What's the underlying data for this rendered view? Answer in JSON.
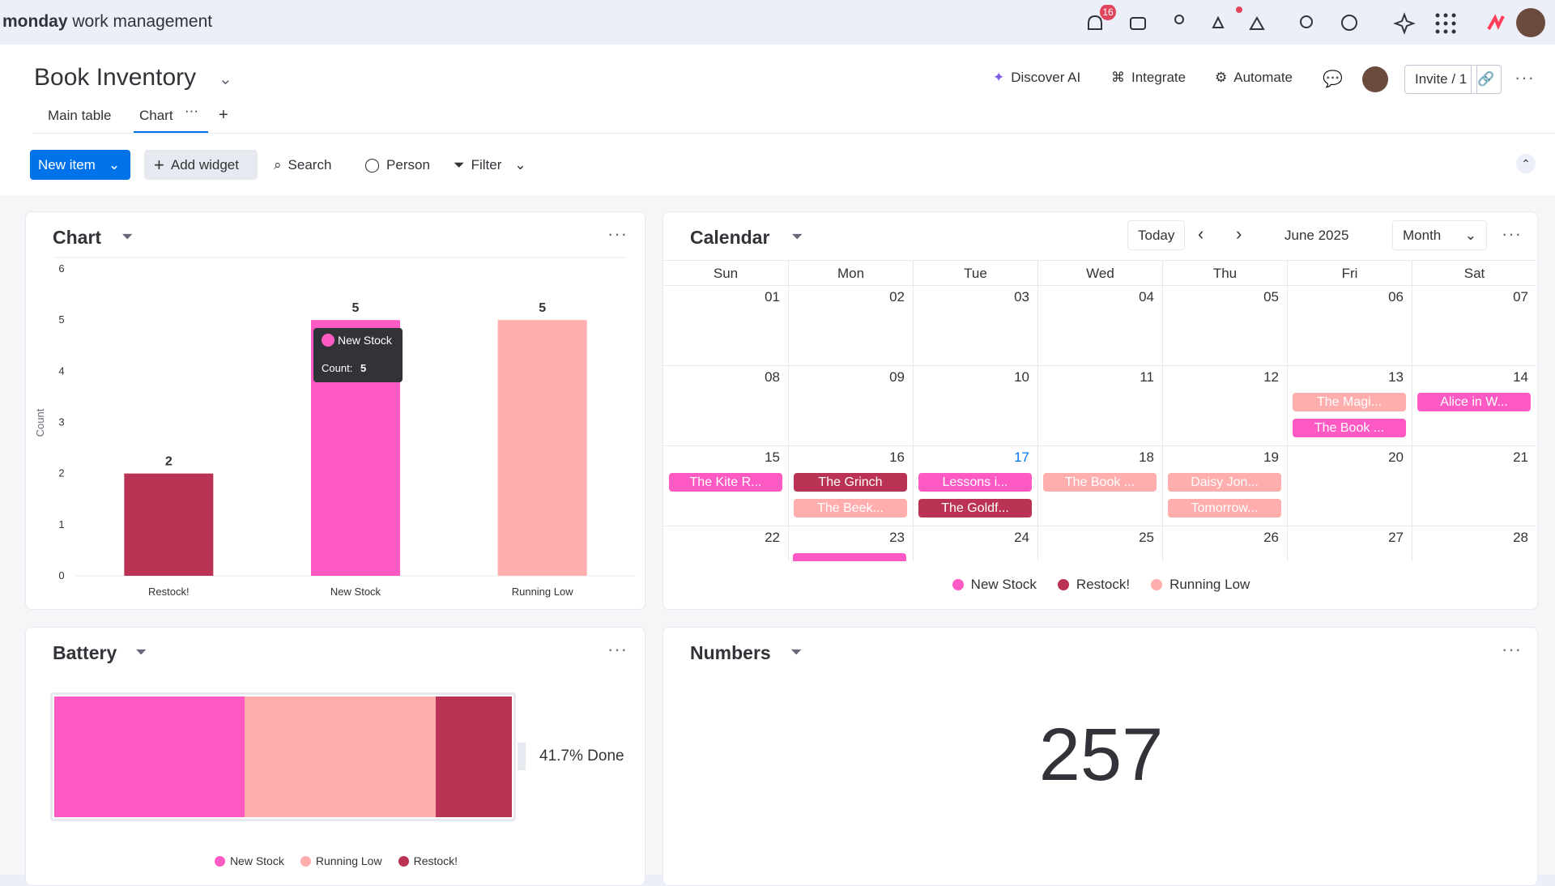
{
  "topbar": {
    "brand": "monday",
    "product": "work management",
    "notifications": 16
  },
  "board": {
    "title": "Book Inventory",
    "tabs": [
      "Main table",
      "Chart"
    ],
    "actions": [
      "Discover AI",
      "Integrate",
      "Automate"
    ],
    "invite": "Invite / 1"
  },
  "toolbar": {
    "new_item": "New item",
    "add_widget": "Add widget",
    "search": "Search",
    "person": "Person",
    "filter": "Filter"
  },
  "chart_data": {
    "type": "bar",
    "title": "Chart",
    "y_label": "Count",
    "categories": [
      "Restock!",
      "New Stock",
      "Running Low"
    ],
    "values": [
      2,
      5,
      5
    ],
    "colors": [
      "#bb3354",
      "#ff5ac4",
      "#ffadad"
    ],
    "ylim": [
      0,
      6
    ],
    "yticks": [
      0,
      1,
      2,
      3,
      4,
      5,
      6
    ],
    "grid": false,
    "tooltip": {
      "name": "New Stock",
      "label": "Count:",
      "value": 5
    }
  },
  "calendar": {
    "title": "Calendar",
    "today_button": "Today",
    "month": "June 2025",
    "view": "Month",
    "weekdays": [
      "Sun",
      "Mon",
      "Tue",
      "Wed",
      "Thu",
      "Fri",
      "Sat"
    ],
    "weeks": [
      [
        "01",
        "02",
        "03",
        "04",
        "05",
        "06",
        "07"
      ],
      [
        "08",
        "09",
        "10",
        "11",
        "12",
        "13",
        "14"
      ],
      [
        "15",
        "16",
        "17",
        "18",
        "19",
        "20",
        "21"
      ],
      [
        "22",
        "23",
        "24",
        "25",
        "26",
        "27",
        "28"
      ]
    ],
    "today": "17",
    "events": [
      {
        "day": "13",
        "label": "The Magi...",
        "status": "Running Low"
      },
      {
        "day": "13",
        "label": "The Book ...",
        "status": "New Stock"
      },
      {
        "day": "14",
        "label": "Alice in W...",
        "status": "New Stock"
      },
      {
        "day": "15",
        "label": "The Kite R...",
        "status": "New Stock"
      },
      {
        "day": "16",
        "label": "The Grinch",
        "status": "Restock!"
      },
      {
        "day": "16",
        "label": "The Beek...",
        "status": "Running Low"
      },
      {
        "day": "17",
        "label": "Lessons i...",
        "status": "New Stock"
      },
      {
        "day": "17",
        "label": "The Goldf...",
        "status": "Restock!"
      },
      {
        "day": "18",
        "label": "The Book ...",
        "status": "Running Low"
      },
      {
        "day": "19",
        "label": "Daisy Jon...",
        "status": "Running Low"
      },
      {
        "day": "19",
        "label": "Tomorrow...",
        "status": "Running Low"
      }
    ],
    "legend": [
      {
        "name": "New Stock",
        "color": "#ff5ac4"
      },
      {
        "name": "Restock!",
        "color": "#bb3354"
      },
      {
        "name": "Running Low",
        "color": "#ffadad"
      }
    ]
  },
  "battery": {
    "title": "Battery",
    "segments": [
      {
        "name": "New Stock",
        "color": "#ff5ac4",
        "value": 5
      },
      {
        "name": "Running Low",
        "color": "#ffadad",
        "value": 5
      },
      {
        "name": "Restock!",
        "color": "#bb3354",
        "value": 2
      }
    ],
    "done_label": "41.7% Done"
  },
  "numbers": {
    "title": "Numbers",
    "value": 257
  }
}
